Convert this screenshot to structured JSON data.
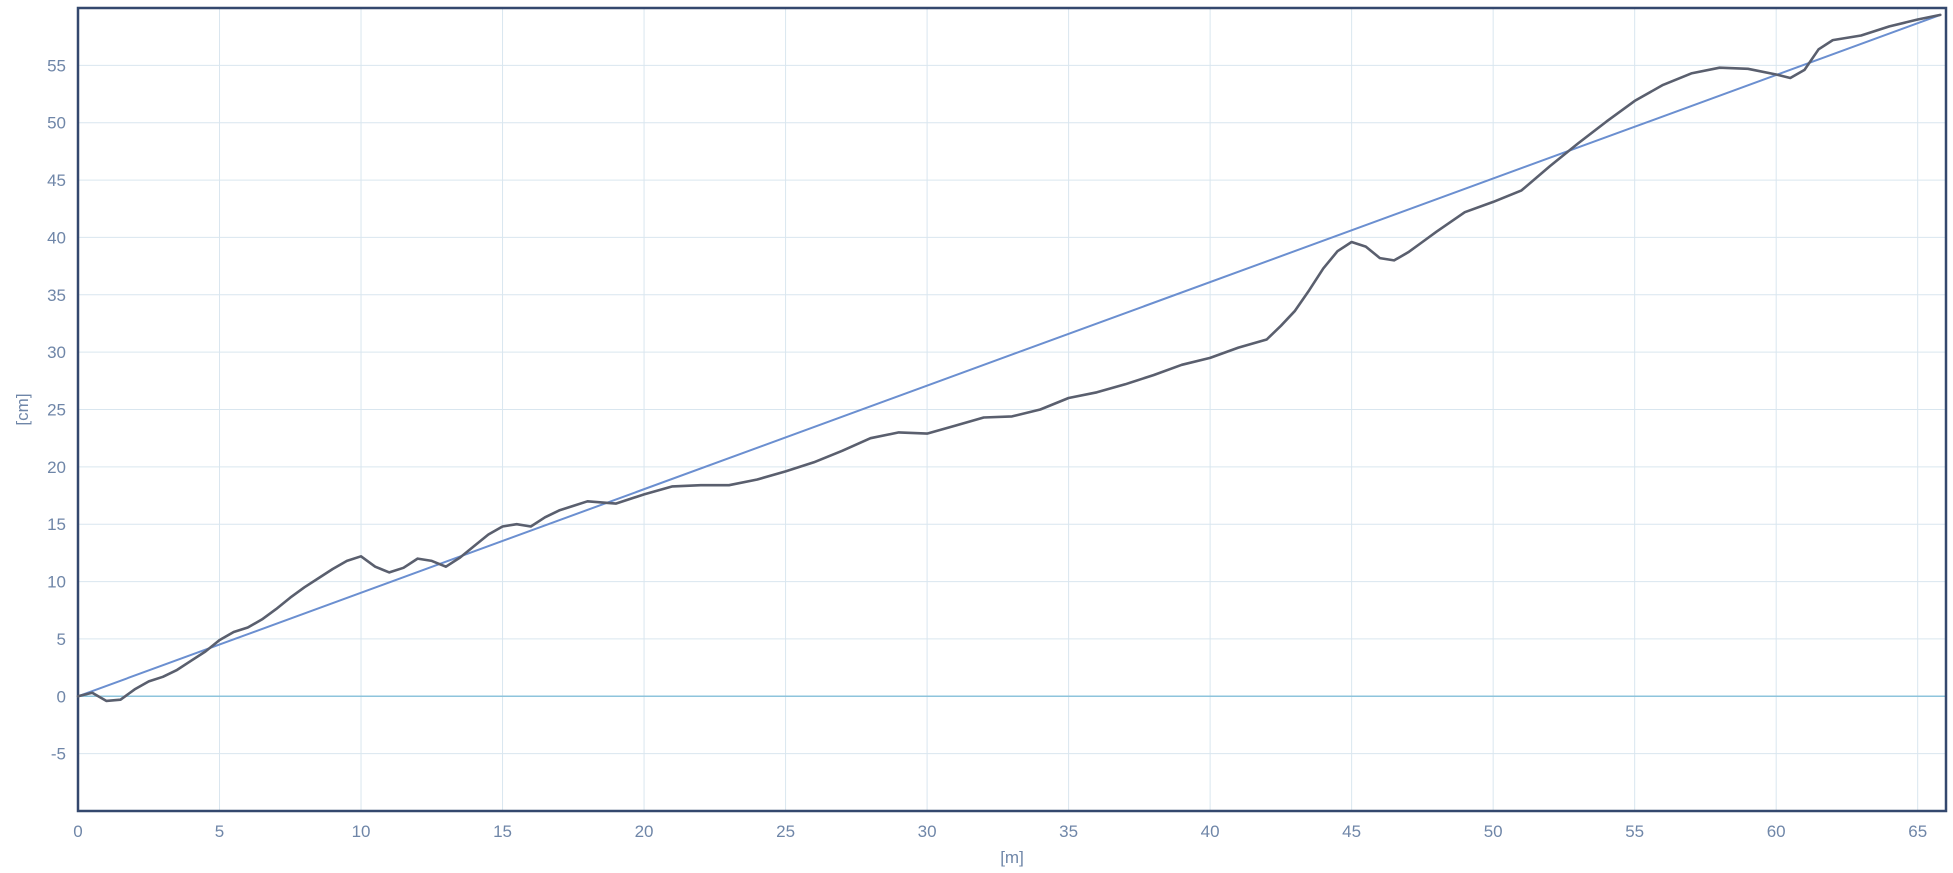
{
  "chart_data": {
    "type": "line",
    "title": "",
    "xlabel": "[m]",
    "ylabel": "[cm]",
    "xlim": [
      0,
      66
    ],
    "ylim": [
      -10,
      60
    ],
    "x_ticks": [
      0,
      5,
      10,
      15,
      20,
      25,
      30,
      35,
      40,
      45,
      50,
      55,
      60,
      65
    ],
    "y_ticks": [
      -5,
      0,
      5,
      10,
      15,
      20,
      25,
      30,
      35,
      40,
      45,
      50,
      55
    ],
    "grid": true,
    "legend": "none",
    "colors": {
      "frame": "#34486e",
      "grid": "#d9e6ef",
      "zero_line": "#8ec4dc",
      "trend_line": "#6b8fd0",
      "profile_line": "#5a5f6e",
      "tick_text": "#6f86a8"
    },
    "series": [
      {
        "role": "trend",
        "x": [
          0,
          65.8
        ],
        "y": [
          0,
          59.4
        ]
      },
      {
        "role": "profile",
        "x": [
          0,
          0.5,
          1,
          1.5,
          2,
          2.5,
          3,
          3.5,
          4,
          4.5,
          5,
          5.5,
          6,
          6.5,
          7,
          7.5,
          8,
          8.5,
          9,
          9.5,
          10,
          10.5,
          11,
          11.5,
          12,
          12.5,
          13,
          13.5,
          14,
          14.5,
          15,
          15.5,
          16,
          16.5,
          17,
          17.5,
          18,
          18.5,
          19,
          19.5,
          20,
          21,
          22,
          23,
          24,
          25,
          26,
          27,
          28,
          29,
          30,
          31,
          32,
          33,
          34,
          35,
          36,
          37,
          38,
          39,
          40,
          41,
          42,
          42.5,
          43,
          43.5,
          44,
          44.5,
          45,
          45.5,
          46,
          46.5,
          47,
          47.5,
          48,
          49,
          50,
          51,
          52,
          53,
          54,
          55,
          56,
          57,
          58,
          59,
          60,
          60.5,
          61,
          61.5,
          62,
          63,
          64,
          65,
          65.8
        ],
        "y": [
          0,
          0.3,
          -0.4,
          -0.3,
          0.6,
          1.3,
          1.7,
          2.3,
          3.1,
          3.9,
          4.9,
          5.6,
          6.0,
          6.7,
          7.6,
          8.6,
          9.5,
          10.3,
          11.1,
          11.8,
          12.2,
          11.3,
          10.8,
          11.2,
          12.0,
          11.8,
          11.3,
          12.1,
          13.1,
          14.1,
          14.8,
          15.0,
          14.8,
          15.6,
          16.2,
          16.6,
          17.0,
          16.9,
          16.8,
          17.2,
          17.6,
          18.3,
          18.4,
          18.4,
          18.9,
          19.6,
          20.4,
          21.4,
          22.5,
          23.0,
          22.9,
          23.6,
          24.3,
          24.4,
          25.0,
          26.0,
          26.5,
          27.2,
          28.0,
          28.9,
          29.5,
          30.4,
          31.1,
          32.3,
          33.6,
          35.4,
          37.3,
          38.8,
          39.6,
          39.2,
          38.2,
          38.0,
          38.7,
          39.6,
          40.5,
          42.2,
          43.1,
          44.1,
          46.2,
          48.2,
          50.1,
          51.9,
          53.3,
          54.3,
          54.8,
          54.7,
          54.2,
          53.9,
          54.6,
          56.4,
          57.2,
          57.6,
          58.4,
          59.0,
          59.4
        ]
      }
    ]
  }
}
